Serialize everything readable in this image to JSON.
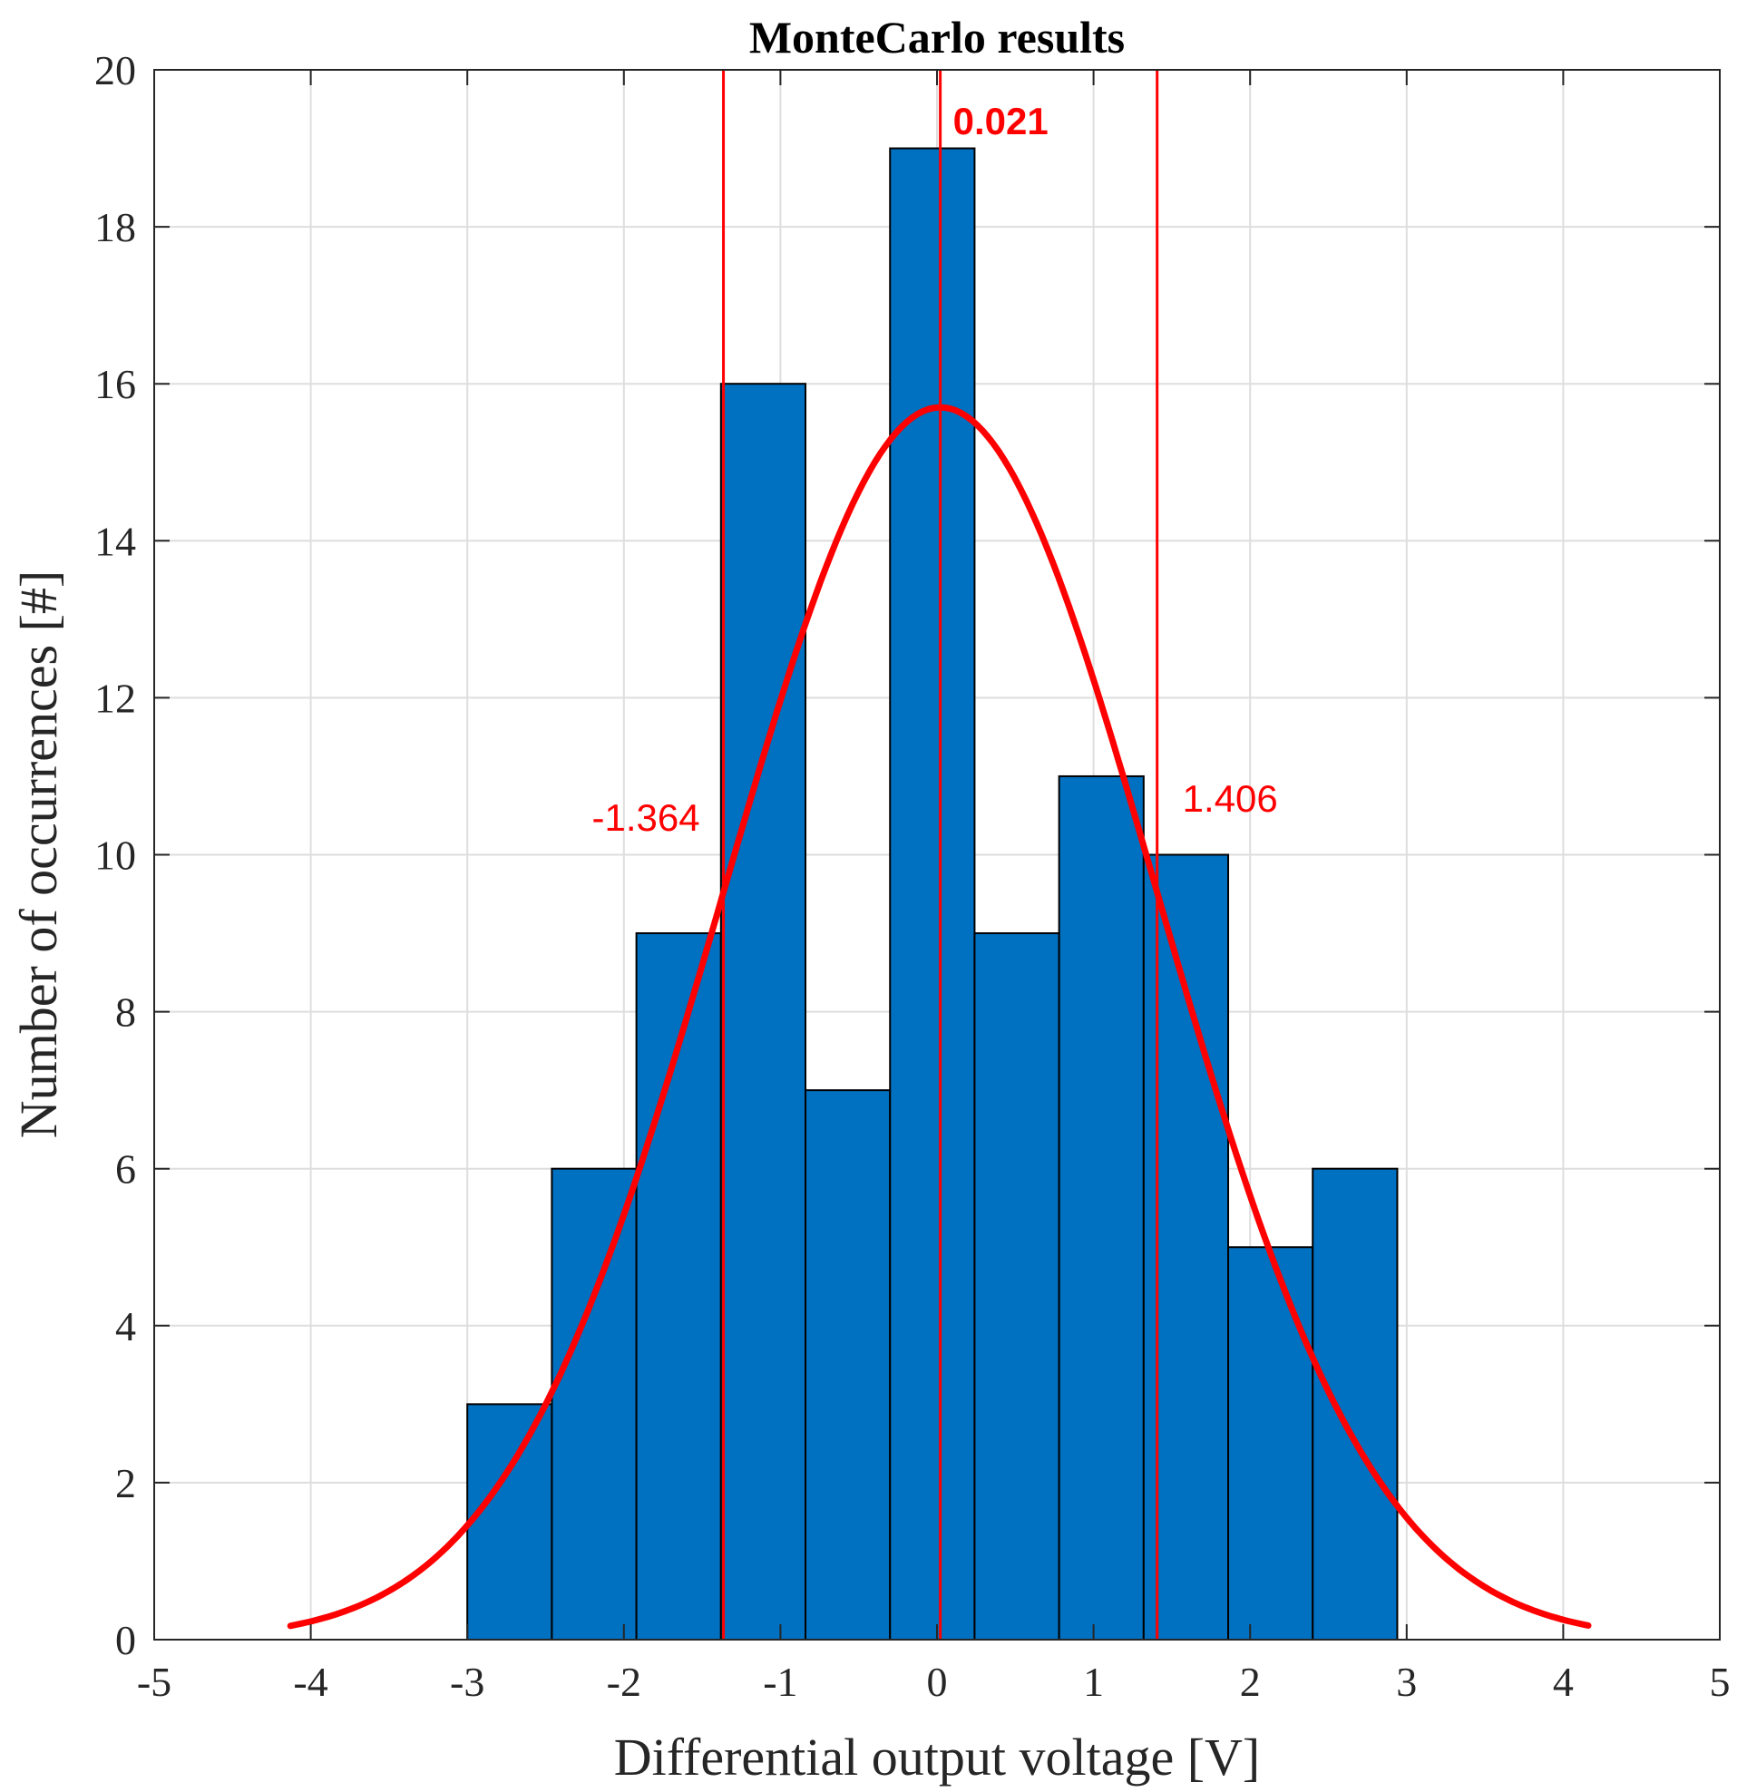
{
  "chart_data": {
    "type": "bar",
    "title": "MonteCarlo results",
    "xlabel": "Differential output voltage [V]",
    "ylabel": "Number of occurrences [#]",
    "xlim": [
      -5,
      5
    ],
    "ylim": [
      0,
      20
    ],
    "xticks": [
      -5,
      -4,
      -3,
      -2,
      -1,
      0,
      1,
      2,
      3,
      4,
      5
    ],
    "yticks": [
      0,
      2,
      4,
      6,
      8,
      10,
      12,
      14,
      16,
      18,
      20
    ],
    "grid": true,
    "bin_edges": [
      -3.0,
      -2.46,
      -1.92,
      -1.38,
      -0.84,
      -0.3,
      0.24,
      0.78,
      1.32,
      1.86,
      2.4,
      2.94
    ],
    "values": [
      3,
      6,
      9,
      16,
      7,
      19,
      9,
      11,
      10,
      5,
      6
    ],
    "bar_color": "#0070c0",
    "fit_curve": {
      "type": "normal",
      "mean": 0.021,
      "sigma": 1.385,
      "peak": 15.7,
      "x_range": [
        -4.13,
        4.16
      ],
      "color": "#ff0000"
    },
    "vlines": [
      {
        "x": -1.364,
        "label": "-1.364",
        "bold": false
      },
      {
        "x": 0.021,
        "label": "0.021",
        "bold": true
      },
      {
        "x": 1.406,
        "label": "1.406",
        "bold": false
      }
    ],
    "annotation_color": "#ff0000"
  }
}
